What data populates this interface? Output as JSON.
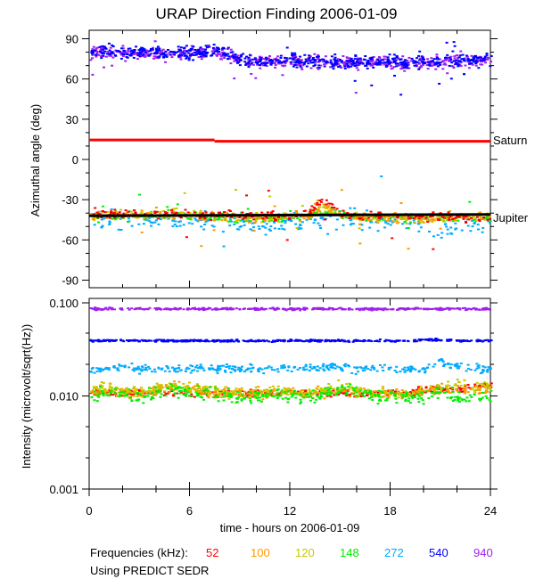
{
  "chart_data": [
    {
      "type": "scatter",
      "title": "URAP Direction Finding  2006-01-09",
      "ylabel": "Azimuthal angle (deg)",
      "xlim": [
        0,
        24
      ],
      "ylim": [
        -90,
        90
      ],
      "yticks": [
        "90",
        "60",
        "30",
        "0",
        "-30",
        "-60",
        "-90"
      ],
      "ytick_values": [
        90,
        60,
        30,
        0,
        -30,
        -60,
        -90
      ],
      "reference_lines": [
        {
          "name": "Saturn",
          "color": "#ff0000",
          "segments": [
            [
              0,
              7.5,
              14.5
            ],
            [
              7.5,
              24,
              13.5
            ]
          ]
        },
        {
          "name": "Jupiter",
          "color": "#000000",
          "segments": [
            [
              0,
              24,
              -42,
              -41
            ]
          ]
        }
      ],
      "hours": [
        0,
        1,
        2,
        3,
        4,
        5,
        6,
        7,
        8,
        9,
        10,
        11,
        12,
        13,
        14,
        15,
        16,
        17,
        18,
        19,
        20,
        21,
        22,
        23,
        24
      ],
      "series": [
        {
          "name": "940",
          "color": "#a020f0",
          "azimuth": [
            81,
            80,
            80,
            80,
            79,
            80,
            80,
            80,
            79,
            74,
            73,
            73,
            74,
            73,
            73,
            73,
            72,
            73,
            73,
            72,
            73,
            73,
            74,
            74,
            75
          ],
          "spread": 4
        },
        {
          "name": "540",
          "color": "#0000ff",
          "azimuth": [
            82,
            81,
            80,
            81,
            80,
            81,
            80,
            81,
            80,
            75,
            74,
            74,
            75,
            74,
            74,
            73,
            73,
            74,
            74,
            73,
            74,
            74,
            75,
            75,
            76
          ],
          "spread": 4
        },
        {
          "name": "272",
          "color": "#00aaff",
          "azimuth": [
            -44,
            -45,
            -46,
            -44,
            -43,
            -44,
            -45,
            -44,
            -45,
            -46,
            -48,
            -50,
            -46,
            -45,
            -44,
            -42,
            -44,
            -45,
            -46,
            -47,
            -48,
            -52,
            -50,
            -48,
            -46
          ],
          "spread": 6
        },
        {
          "name": "148",
          "color": "#00ee00",
          "azimuth": [
            -42,
            -41,
            -42,
            -42,
            -41,
            -41,
            -42,
            -42,
            -42,
            -43,
            -43,
            -44,
            -42,
            -42,
            -38,
            -40,
            -42,
            -43,
            -43,
            -43,
            -43,
            -43,
            -43,
            -43,
            -43
          ],
          "spread": 3
        },
        {
          "name": "120",
          "color": "#c8c800",
          "azimuth": [
            -41,
            -41,
            -40,
            -41,
            -41,
            -40,
            -41,
            -41,
            -41,
            -42,
            -42,
            -43,
            -42,
            -41,
            -36,
            -40,
            -42,
            -42,
            -42,
            -43,
            -43,
            -42,
            -42,
            -42,
            -42
          ],
          "spread": 3
        },
        {
          "name": "100",
          "color": "#ff9900",
          "azimuth": [
            -41,
            -40,
            -41,
            -40,
            -41,
            -41,
            -41,
            -42,
            -42,
            -42,
            -43,
            -42,
            -41,
            -41,
            -34,
            -41,
            -42,
            -43,
            -43,
            -44,
            -43,
            -43,
            -42,
            -42,
            -42
          ],
          "spread": 3
        },
        {
          "name": "52",
          "color": "#ff0000",
          "azimuth": [
            -40,
            -40,
            -40,
            -40,
            -41,
            -40,
            -40,
            -41,
            -41,
            -41,
            -42,
            -42,
            -41,
            -40,
            -30,
            -40,
            -41,
            -42,
            -42,
            -43,
            -42,
            -42,
            -42,
            -42,
            -42
          ],
          "spread": 3
        }
      ],
      "right_labels": [
        "Saturn",
        "Jupiter"
      ]
    },
    {
      "type": "scatter",
      "ylabel": "Intensity (microvolt/sqrt(Hz))",
      "yscale": "log",
      "xlim": [
        0,
        24
      ],
      "ylim": [
        0.001,
        0.1
      ],
      "yticks": [
        "0.100",
        "0.010",
        "0.001"
      ],
      "ytick_values": [
        0.1,
        0.01,
        0.001
      ],
      "xlabel": "time - hours on 2006-01-09",
      "xticks": [
        "0",
        "6",
        "12",
        "18",
        "24"
      ],
      "xtick_values": [
        0,
        6,
        12,
        18,
        24
      ],
      "hours": [
        0,
        1,
        2,
        3,
        4,
        5,
        6,
        7,
        8,
        9,
        10,
        11,
        12,
        13,
        14,
        15,
        16,
        17,
        18,
        19,
        20,
        21,
        22,
        23,
        24
      ],
      "series": [
        {
          "name": "940",
          "color": "#a020f0",
          "intensity": [
            0.088,
            0.088,
            0.088,
            0.088,
            0.088,
            0.088,
            0.088,
            0.088,
            0.088,
            0.088,
            0.088,
            0.088,
            0.088,
            0.088,
            0.088,
            0.088,
            0.088,
            0.088,
            0.088,
            0.088,
            0.088,
            0.088,
            0.088,
            0.088,
            0.088
          ],
          "spread": 0.01
        },
        {
          "name": "540",
          "color": "#0000ff",
          "intensity": [
            0.04,
            0.04,
            0.04,
            0.04,
            0.04,
            0.04,
            0.04,
            0.04,
            0.04,
            0.04,
            0.04,
            0.04,
            0.04,
            0.04,
            0.04,
            0.04,
            0.04,
            0.04,
            0.04,
            0.04,
            0.041,
            0.041,
            0.04,
            0.04,
            0.04
          ],
          "spread": 0.01
        },
        {
          "name": "272",
          "color": "#00aaff",
          "intensity": [
            0.019,
            0.02,
            0.021,
            0.02,
            0.02,
            0.02,
            0.02,
            0.02,
            0.02,
            0.02,
            0.02,
            0.02,
            0.02,
            0.02,
            0.021,
            0.021,
            0.02,
            0.02,
            0.02,
            0.02,
            0.02,
            0.024,
            0.021,
            0.02,
            0.02
          ],
          "spread": 0.04
        },
        {
          "name": "148",
          "color": "#00ee00",
          "intensity": [
            0.01,
            0.011,
            0.01,
            0.01,
            0.011,
            0.012,
            0.011,
            0.011,
            0.01,
            0.01,
            0.01,
            0.011,
            0.01,
            0.01,
            0.011,
            0.012,
            0.011,
            0.01,
            0.01,
            0.01,
            0.01,
            0.011,
            0.01,
            0.01,
            0.01
          ],
          "spread": 0.06
        },
        {
          "name": "120",
          "color": "#c8c800",
          "intensity": [
            0.012,
            0.013,
            0.011,
            0.011,
            0.012,
            0.014,
            0.012,
            0.012,
            0.011,
            0.011,
            0.011,
            0.012,
            0.011,
            0.011,
            0.012,
            0.013,
            0.012,
            0.011,
            0.011,
            0.011,
            0.012,
            0.013,
            0.014,
            0.013,
            0.013
          ],
          "spread": 0.05
        },
        {
          "name": "100",
          "color": "#ff9900",
          "intensity": [
            0.011,
            0.012,
            0.011,
            0.011,
            0.012,
            0.013,
            0.012,
            0.011,
            0.011,
            0.011,
            0.011,
            0.011,
            0.011,
            0.011,
            0.011,
            0.012,
            0.011,
            0.011,
            0.011,
            0.011,
            0.011,
            0.012,
            0.012,
            0.012,
            0.012
          ],
          "spread": 0.05
        },
        {
          "name": "52",
          "color": "#ff0000",
          "intensity": [
            0.011,
            0.011,
            0.011,
            0.011,
            0.011,
            0.011,
            0.011,
            0.011,
            0.011,
            0.011,
            0.011,
            0.011,
            0.011,
            0.011,
            0.011,
            0.011,
            0.011,
            0.011,
            0.011,
            0.011,
            0.012,
            0.012,
            0.012,
            0.013,
            0.013
          ],
          "spread": 0.03
        }
      ]
    }
  ],
  "legend": {
    "label": "Frequencies (kHz):",
    "items": [
      {
        "text": "52",
        "color": "#ff0000"
      },
      {
        "text": "100",
        "color": "#ff9900"
      },
      {
        "text": "120",
        "color": "#c8c800"
      },
      {
        "text": "148",
        "color": "#00ee00"
      },
      {
        "text": "272",
        "color": "#00aaff"
      },
      {
        "text": "540",
        "color": "#0000ff"
      },
      {
        "text": "940",
        "color": "#a020f0"
      }
    ]
  },
  "footnote": "Using PREDICT SEDR"
}
